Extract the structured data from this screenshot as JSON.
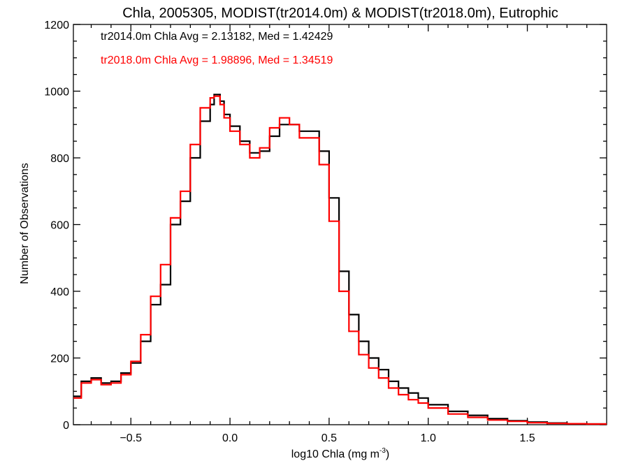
{
  "chart_data": {
    "type": "line",
    "title": "Chla, 2005305, MODIST(tr2014.0m) & MODIST(tr2018.0m), Eutrophic",
    "xlabel": "log10 Chla (mg m",
    "xlabel_sup": "-3",
    "xlabel_close": ")",
    "ylabel": "Number of Observations",
    "xlim": [
      -0.79,
      1.9
    ],
    "ylim": [
      0,
      1200
    ],
    "xticks": [
      -0.5,
      0.0,
      0.5,
      1.0,
      1.5
    ],
    "xtick_labels": [
      "−0.5",
      "0.0",
      "0.5",
      "1.0",
      "1.5"
    ],
    "yticks": [
      0,
      200,
      400,
      600,
      800,
      1000,
      1200
    ],
    "ytick_labels": [
      "0",
      "200",
      "400",
      "600",
      "800",
      "1000",
      "1200"
    ],
    "grid": false,
    "legend_position": "top-left",
    "legend": [
      "tr2014.0m Chla Avg = 2.13182, Med = 1.42429",
      "tr2018.0m Chla Avg = 1.98896, Med = 1.34519"
    ],
    "series": [
      {
        "color": "#000000",
        "style": "step",
        "x": [
          -0.79,
          -0.75,
          -0.7,
          -0.65,
          -0.6,
          -0.55,
          -0.5,
          -0.45,
          -0.4,
          -0.35,
          -0.3,
          -0.25,
          -0.2,
          -0.15,
          -0.1,
          -0.08,
          -0.05,
          -0.03,
          0.0,
          0.05,
          0.1,
          0.15,
          0.2,
          0.25,
          0.3,
          0.35,
          0.4,
          0.45,
          0.5,
          0.55,
          0.6,
          0.65,
          0.7,
          0.75,
          0.8,
          0.85,
          0.9,
          0.95,
          1.0,
          1.1,
          1.2,
          1.3,
          1.4,
          1.5,
          1.6,
          1.7,
          1.8,
          1.9
        ],
        "y": [
          85,
          130,
          140,
          125,
          130,
          155,
          185,
          250,
          360,
          420,
          600,
          670,
          800,
          910,
          960,
          990,
          970,
          930,
          895,
          850,
          815,
          820,
          865,
          900,
          900,
          880,
          880,
          820,
          680,
          460,
          330,
          250,
          200,
          165,
          130,
          110,
          95,
          80,
          60,
          40,
          28,
          18,
          12,
          8,
          5,
          3,
          2,
          2
        ]
      },
      {
        "color": "#ff0000",
        "style": "step",
        "x": [
          -0.79,
          -0.75,
          -0.7,
          -0.65,
          -0.6,
          -0.55,
          -0.5,
          -0.45,
          -0.4,
          -0.35,
          -0.3,
          -0.25,
          -0.2,
          -0.15,
          -0.1,
          -0.08,
          -0.05,
          -0.03,
          0.0,
          0.05,
          0.1,
          0.15,
          0.2,
          0.25,
          0.3,
          0.35,
          0.4,
          0.45,
          0.5,
          0.55,
          0.6,
          0.65,
          0.7,
          0.75,
          0.8,
          0.85,
          0.9,
          0.95,
          1.0,
          1.1,
          1.2,
          1.3,
          1.4,
          1.5,
          1.6,
          1.7,
          1.8,
          1.9
        ],
        "y": [
          80,
          125,
          135,
          120,
          125,
          150,
          190,
          270,
          385,
          480,
          620,
          700,
          840,
          950,
          980,
          985,
          960,
          920,
          880,
          840,
          800,
          830,
          890,
          920,
          900,
          860,
          860,
          780,
          610,
          400,
          280,
          210,
          170,
          140,
          110,
          90,
          75,
          65,
          50,
          32,
          22,
          14,
          10,
          6,
          4,
          3,
          2,
          2
        ]
      }
    ]
  }
}
